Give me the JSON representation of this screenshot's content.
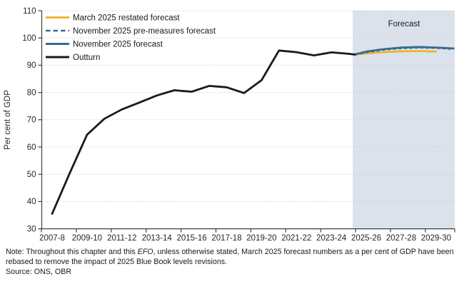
{
  "figure": {
    "forecast_band_label": "Forecast",
    "note_prefix": "Note: Throughout this chapter and this ",
    "note_italic": "EFO",
    "note_suffix": ", unless otherwise stated, March 2025 forecast numbers as a per cent of GDP have been rebased to remove the impact of 2025 Blue Book levels revisions.",
    "source": "Source: ONS, OBR"
  },
  "chart_data": {
    "type": "line",
    "title": "",
    "xlabel": "",
    "ylabel": "Per cent of GDP",
    "ylim": [
      30,
      110
    ],
    "ytick_step": 10,
    "grid": "horizontal-dotted",
    "legend_position": "top-left-inside",
    "x_tick_labels": [
      "2007-8",
      "2009-10",
      "2011-12",
      "2013-14",
      "2015-16",
      "2017-18",
      "2019-20",
      "2021-22",
      "2023-24",
      "2025-26",
      "2027-28",
      "2029-30"
    ],
    "x_tick_label_indices": [
      0,
      2,
      4,
      6,
      8,
      10,
      12,
      14,
      16,
      18,
      20,
      22
    ],
    "x_base_label": "2007-8",
    "forecast_band_start_index": 17.22,
    "forecast_band_color": "#dce2ec",
    "gridline_color": "#cccccc",
    "axis_color": "#404040",
    "series": [
      {
        "name": "March 2025 restated forecast",
        "style": "solid",
        "color": "#efb321",
        "width": 2.6,
        "x_index": [
          17.35,
          18,
          19,
          20,
          21,
          22
        ],
        "values": [
          93.9,
          94.3,
          94.8,
          95.1,
          95.2,
          95.0
        ]
      },
      {
        "name": "November 2025 pre-measures forecast",
        "style": "dashed",
        "color": "#3a6b8f",
        "width": 2.4,
        "x_index": [
          17.35,
          18,
          19,
          20,
          21,
          22,
          23
        ],
        "values": [
          93.85,
          94.7,
          95.65,
          96.2,
          96.45,
          96.3,
          95.95
        ]
      },
      {
        "name": "November 2025 forecast",
        "style": "solid",
        "color": "#3a6b8f",
        "width": 2.8,
        "x_index": [
          17.35,
          18,
          19,
          20,
          21,
          22,
          23
        ],
        "values": [
          94.0,
          95.0,
          95.9,
          96.5,
          96.7,
          96.5,
          96.15
        ]
      },
      {
        "name": "Outturn",
        "style": "solid",
        "color": "#1a1a1a",
        "width": 2.8,
        "x_index": [
          0,
          1,
          2,
          3,
          4,
          5,
          6,
          7,
          8,
          9,
          10,
          11,
          12,
          13,
          14,
          15,
          16,
          17,
          17.35
        ],
        "values": [
          35.5,
          50.3,
          64.5,
          70.4,
          73.8,
          76.3,
          78.9,
          80.8,
          80.3,
          82.4,
          81.9,
          79.8,
          84.5,
          95.4,
          94.8,
          93.6,
          94.7,
          94.2,
          93.9
        ]
      }
    ]
  }
}
